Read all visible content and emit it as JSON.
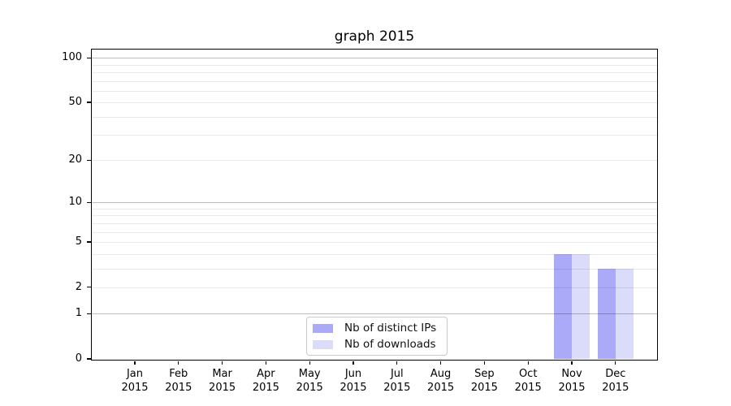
{
  "figure": {
    "background": "#ffffff"
  },
  "chart_data": {
    "type": "bar",
    "title": "graph 2015",
    "categories": [
      "Jan",
      "Feb",
      "Mar",
      "Apr",
      "May",
      "Jun",
      "Jul",
      "Aug",
      "Sep",
      "Oct",
      "Nov",
      "Dec"
    ],
    "year_label": "2015",
    "series": [
      {
        "name": "Nb of distinct IPs",
        "color": "#aaaaf8",
        "values": [
          0,
          0,
          0,
          0,
          0,
          0,
          0,
          0,
          0,
          0,
          4,
          3
        ]
      },
      {
        "name": "Nb of downloads",
        "color": "#dbdbfa",
        "values": [
          0,
          0,
          0,
          0,
          0,
          0,
          0,
          0,
          0,
          0,
          4,
          3
        ]
      }
    ],
    "y_axis": {
      "scale": "log10(value+1)",
      "tick_labels": [
        "0",
        "1",
        "2",
        "5",
        "10",
        "20",
        "50",
        "100"
      ],
      "tick_values": [
        0,
        1,
        2,
        5,
        10,
        20,
        50,
        100
      ],
      "emphasized_gridlines": [
        1,
        10,
        100
      ],
      "minor_gridlines": [
        3,
        4,
        6,
        7,
        8,
        9,
        30,
        40,
        60,
        70,
        80,
        90
      ],
      "ylim": [
        0,
        130
      ]
    },
    "xlabel": "",
    "ylabel": "",
    "grid": true,
    "legend_position": "lower center"
  },
  "colors": {
    "axis": "#000000",
    "grid_major": "rgba(0,0,0,0.26)",
    "grid_minor": "rgba(0,0,0,0.085)",
    "legend_border": "#c9c9c9",
    "bar_distinct_ips": "#aaaaf8",
    "bar_downloads": "#dbdbfa"
  }
}
